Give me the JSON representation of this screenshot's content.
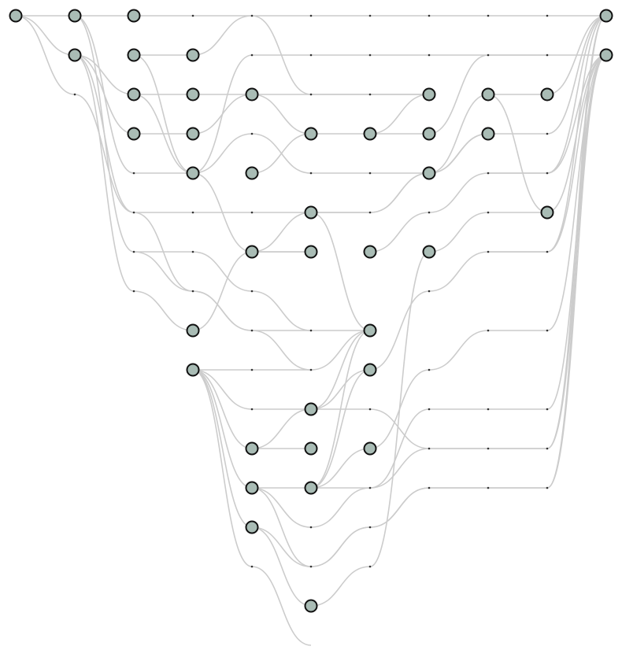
{
  "diagram": {
    "type": "layered-graph",
    "colors": {
      "node_fill": "#a9bcb5",
      "node_stroke": "#111111",
      "edge": "#cccccc",
      "waypoint": "#333333",
      "background": "#ffffff"
    }
  }
}
